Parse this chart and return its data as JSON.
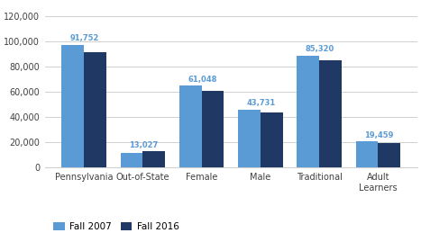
{
  "categories": [
    "Pennsylvania",
    "Out-of-State",
    "Female",
    "Male",
    "Traditional",
    "Adult\nLearners"
  ],
  "fall2007": [
    97500,
    11500,
    65000,
    46000,
    89000,
    21000
  ],
  "fall2016": [
    91752,
    13027,
    61048,
    43731,
    85320,
    19459
  ],
  "fall2016_labels": [
    "91,752",
    "13,027",
    "61,048",
    "43,731",
    "85,320",
    "19,459"
  ],
  "color_2007": "#5b9bd5",
  "color_2016": "#1f3864",
  "label_color": "#5b9bd5",
  "ylim": [
    0,
    130000
  ],
  "yticks": [
    0,
    20000,
    40000,
    60000,
    80000,
    100000,
    120000
  ],
  "ytick_labels": [
    "0",
    "20,000",
    "40,000",
    "60,000",
    "80,000",
    "100,000",
    "120,000"
  ],
  "legend_labels": [
    "Fall 2007",
    "Fall 2016"
  ],
  "bar_width": 0.38,
  "figsize": [
    4.67,
    2.59
  ],
  "dpi": 100
}
